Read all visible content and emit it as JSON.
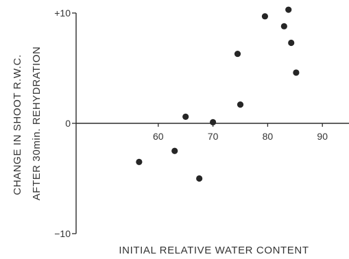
{
  "chart_data": {
    "type": "scatter",
    "title": "",
    "xlabel": "INITIAL RELATIVE WATER CONTENT",
    "ylabel_line1": "CHANGE IN SHOOT R.W.C.",
    "ylabel_line2": "AFTER 30min. REHYDRATION",
    "xlim": [
      50,
      100
    ],
    "ylim": [
      -10,
      10
    ],
    "x_ticks": [
      {
        "value": 60,
        "label": "60"
      },
      {
        "value": 70,
        "label": "70"
      },
      {
        "value": 80,
        "label": "80"
      },
      {
        "value": 90,
        "label": "90"
      }
    ],
    "y_ticks": [
      {
        "value": 10,
        "label": "+10"
      },
      {
        "value": 0,
        "label": "0"
      },
      {
        "value": -10,
        "label": "−10"
      }
    ],
    "grid": false,
    "point_color": "#262626",
    "points": [
      {
        "x": 56.5,
        "y": -3.5
      },
      {
        "x": 63.0,
        "y": -2.5
      },
      {
        "x": 65.0,
        "y": 0.6
      },
      {
        "x": 67.5,
        "y": -5.0
      },
      {
        "x": 70.0,
        "y": 0.1
      },
      {
        "x": 74.5,
        "y": 6.3
      },
      {
        "x": 75.0,
        "y": 1.7
      },
      {
        "x": 79.5,
        "y": 9.7
      },
      {
        "x": 83.0,
        "y": 8.8
      },
      {
        "x": 83.8,
        "y": 10.3
      },
      {
        "x": 84.3,
        "y": 7.3
      },
      {
        "x": 85.2,
        "y": 4.6
      }
    ]
  }
}
